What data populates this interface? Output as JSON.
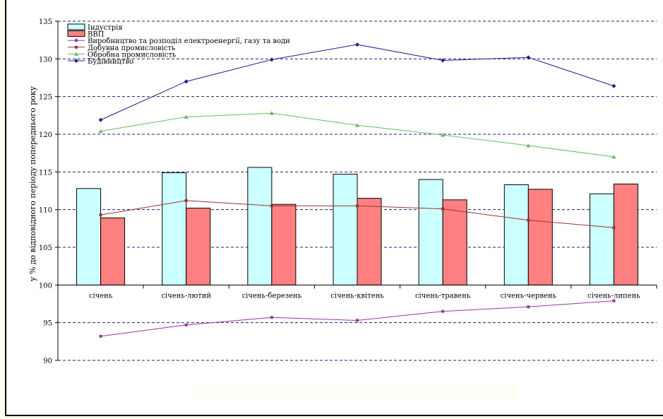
{
  "chart_data": {
    "type": "bar",
    "categories": [
      "січень",
      "січень-лютий",
      "січень-березень",
      "січень-квітень",
      "січень-травень",
      "січень-червень",
      "січень-липень"
    ],
    "ylabel": "у % до відповідного періоду попереднього року",
    "ylim": [
      90,
      135
    ],
    "yticks": [
      90,
      95,
      100,
      105,
      110,
      115,
      120,
      125,
      130,
      135
    ],
    "grid": true,
    "bar_baseline": 100,
    "legend_position": "top-left",
    "bar_series": [
      {
        "name": "Індустрія",
        "values": [
          112.8,
          114.9,
          115.6,
          114.7,
          114.0,
          113.3,
          112.1
        ],
        "color": "#ccffff"
      },
      {
        "name": "ВВП",
        "values": [
          108.9,
          110.2,
          110.7,
          111.5,
          111.3,
          112.7,
          113.4
        ],
        "color": "#ff8080"
      }
    ],
    "line_series": [
      {
        "name": "Виробництво та розподіл електроенергії, газу та води",
        "values": [
          93.2,
          94.7,
          95.7,
          95.3,
          96.5,
          97.1,
          97.9
        ],
        "color": "#993399",
        "marker": "square"
      },
      {
        "name": "Добувна промисловість",
        "values": [
          109.3,
          111.2,
          110.5,
          110.5,
          110.1,
          108.6,
          107.6
        ],
        "color": "#993333",
        "marker": "square"
      },
      {
        "name": "Обробна промисловість",
        "values": [
          120.4,
          122.3,
          122.8,
          121.2,
          119.9,
          118.5,
          117.0
        ],
        "color": "#66bb66",
        "marker": "triangle"
      },
      {
        "name": "Будівництво",
        "values": [
          121.9,
          127.0,
          129.9,
          131.9,
          129.8,
          130.2,
          126.4
        ],
        "color": "#1f1f8f",
        "marker": "diamond"
      }
    ]
  }
}
